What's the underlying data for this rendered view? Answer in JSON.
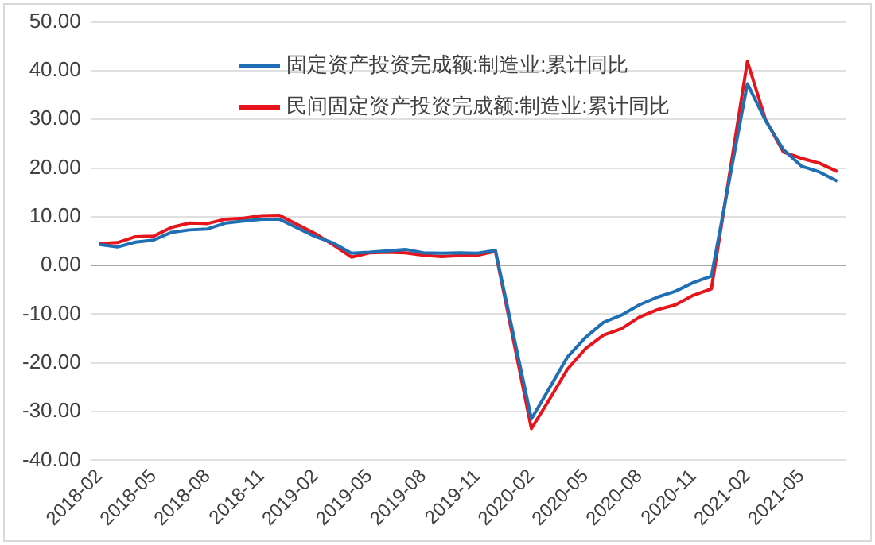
{
  "chart_data": {
    "type": "line",
    "categories": [
      "2018-02",
      null,
      null,
      "2018-05",
      null,
      null,
      "2018-08",
      null,
      null,
      "2018-11",
      null,
      null,
      "2019-02",
      null,
      null,
      "2019-05",
      null,
      null,
      "2019-08",
      null,
      null,
      "2019-11",
      null,
      null,
      "2020-02",
      null,
      null,
      "2020-05",
      null,
      null,
      "2020-08",
      null,
      null,
      "2020-11",
      null,
      null,
      "2021-02",
      null,
      null,
      "2021-05",
      null,
      null
    ],
    "series": [
      {
        "name": "固定资产投资完成额:制造业:累计同比",
        "color": "#1f6fb4",
        "values": [
          4.3,
          3.8,
          4.8,
          5.2,
          6.8,
          7.3,
          7.5,
          8.7,
          9.1,
          9.5,
          9.5,
          null,
          5.9,
          4.6,
          2.5,
          2.7,
          3.0,
          3.3,
          2.6,
          2.5,
          2.6,
          2.5,
          3.1,
          null,
          -31.5,
          -25.2,
          -18.8,
          -14.8,
          -11.7,
          -10.2,
          -8.1,
          -6.5,
          -5.3,
          -3.5,
          -2.2,
          null,
          37.3,
          29.8,
          23.8,
          20.4,
          19.2,
          17.3
        ]
      },
      {
        "name": "民间固定资产投资完成额:制造业:累计同比",
        "color": "#e8141c",
        "values": [
          4.5,
          4.7,
          5.9,
          6.0,
          7.8,
          8.7,
          8.6,
          9.5,
          9.7,
          10.2,
          10.3,
          null,
          6.5,
          4.2,
          1.7,
          2.6,
          2.7,
          2.6,
          2.1,
          1.8,
          2.0,
          2.1,
          2.9,
          null,
          -33.5,
          -27.5,
          -21.3,
          -17.1,
          -14.3,
          -13.0,
          -10.6,
          -9.1,
          -8.1,
          -6.1,
          -4.8,
          null,
          41.9,
          30.0,
          23.3,
          22.0,
          21.0,
          19.3
        ]
      }
    ],
    "ylim": [
      -40,
      50
    ],
    "yticks": [
      {
        "value": -40,
        "label": "-40.00"
      },
      {
        "value": -30,
        "label": "-30.00"
      },
      {
        "value": -20,
        "label": "-20.00"
      },
      {
        "value": -10,
        "label": "-10.00"
      },
      {
        "value": 0,
        "label": "0.00"
      },
      {
        "value": 10,
        "label": "10.00"
      },
      {
        "value": 20,
        "label": "20.00"
      },
      {
        "value": 30,
        "label": "30.00"
      },
      {
        "value": 40,
        "label": "40.00"
      },
      {
        "value": 50,
        "label": "50.00"
      }
    ],
    "grid": "y",
    "legend": "top",
    "marker": "none",
    "line_style": "solid"
  }
}
